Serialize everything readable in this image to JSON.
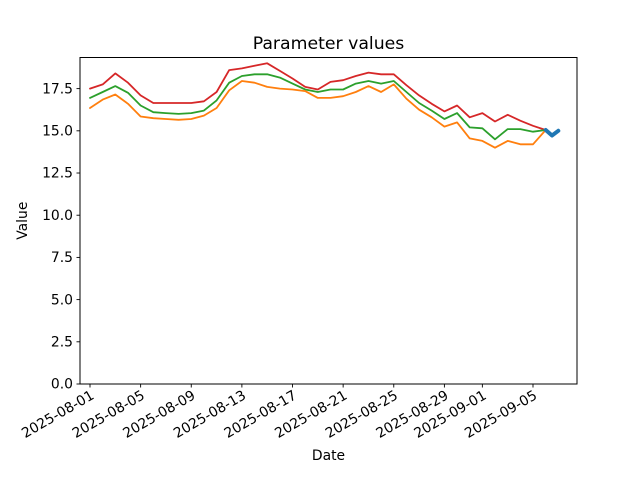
{
  "figure": {
    "title": "Parameter values",
    "xlabel": "Date",
    "ylabel": "Value",
    "background_color": "#ffffff",
    "spine_color": "#000000"
  },
  "chart_data": {
    "type": "line",
    "title": "Parameter values",
    "xlabel": "Date",
    "ylabel": "Value",
    "grid": false,
    "legend": null,
    "ylim": [
      0,
      19.34
    ],
    "xlim_days": [
      -0.79,
      38.48
    ],
    "x_dates": [
      "2025-08-01",
      "2025-08-02",
      "2025-08-03",
      "2025-08-04",
      "2025-08-05",
      "2025-08-06",
      "2025-08-07",
      "2025-08-08",
      "2025-08-09",
      "2025-08-10",
      "2025-08-11",
      "2025-08-12",
      "2025-08-13",
      "2025-08-14",
      "2025-08-15",
      "2025-08-16",
      "2025-08-17",
      "2025-08-18",
      "2025-08-19",
      "2025-08-20",
      "2025-08-21",
      "2025-08-22",
      "2025-08-23",
      "2025-08-24",
      "2025-08-25",
      "2025-08-26",
      "2025-08-27",
      "2025-08-28",
      "2025-08-29",
      "2025-08-30",
      "2025-08-31",
      "2025-09-01",
      "2025-09-02",
      "2025-09-03",
      "2025-09-04",
      "2025-09-05",
      "2025-09-06"
    ],
    "series": [
      {
        "name": "series-red",
        "color": "#d62728",
        "values": [
          17.5,
          17.75,
          18.4,
          17.85,
          17.1,
          16.65,
          16.65,
          16.65,
          16.65,
          16.75,
          17.3,
          18.6,
          18.7,
          18.85,
          19.0,
          18.55,
          18.1,
          17.6,
          17.45,
          17.9,
          18.0,
          18.25,
          18.45,
          18.35,
          18.35,
          17.7,
          17.1,
          16.6,
          16.15,
          16.5,
          15.8,
          16.05,
          15.55,
          15.95,
          15.6,
          15.3,
          15.05
        ]
      },
      {
        "name": "series-green",
        "color": "#2ca02c",
        "values": [
          16.95,
          17.3,
          17.65,
          17.25,
          16.5,
          16.1,
          16.05,
          16.0,
          16.05,
          16.2,
          16.8,
          17.85,
          18.25,
          18.35,
          18.35,
          18.15,
          17.8,
          17.45,
          17.3,
          17.45,
          17.45,
          17.8,
          17.95,
          17.8,
          17.95,
          17.3,
          16.65,
          16.2,
          15.7,
          16.05,
          15.2,
          15.15,
          14.5,
          15.1,
          15.1,
          14.95,
          15.05
        ]
      },
      {
        "name": "series-orange",
        "color": "#ff7f0e",
        "values": [
          16.35,
          16.85,
          17.15,
          16.6,
          15.85,
          15.75,
          15.7,
          15.65,
          15.7,
          15.9,
          16.35,
          17.4,
          17.95,
          17.85,
          17.6,
          17.5,
          17.45,
          17.35,
          16.95,
          16.95,
          17.05,
          17.3,
          17.65,
          17.3,
          17.75,
          16.9,
          16.25,
          15.8,
          15.25,
          15.5,
          14.55,
          14.4,
          14.0,
          14.4,
          14.2,
          14.2,
          15.05
        ]
      }
    ],
    "overlay": {
      "name": "latest-point-marker",
      "color": "#1f77b4",
      "x_day_offsets": [
        36,
        36.5,
        37
      ],
      "values": [
        15.05,
        14.72,
        15.0
      ]
    },
    "x_ticks": [
      {
        "label": "2025-08-01",
        "day": 0
      },
      {
        "label": "2025-08-05",
        "day": 4
      },
      {
        "label": "2025-08-09",
        "day": 8
      },
      {
        "label": "2025-08-13",
        "day": 12
      },
      {
        "label": "2025-08-17",
        "day": 16
      },
      {
        "label": "2025-08-21",
        "day": 20
      },
      {
        "label": "2025-08-25",
        "day": 24
      },
      {
        "label": "2025-08-29",
        "day": 28
      },
      {
        "label": "2025-09-01",
        "day": 31
      },
      {
        "label": "2025-09-05",
        "day": 35
      }
    ],
    "y_ticks": [
      {
        "label": "0.0",
        "value": 0.0
      },
      {
        "label": "2.5",
        "value": 2.5
      },
      {
        "label": "5.0",
        "value": 5.0
      },
      {
        "label": "7.5",
        "value": 7.5
      },
      {
        "label": "10.0",
        "value": 10.0
      },
      {
        "label": "12.5",
        "value": 12.5
      },
      {
        "label": "15.0",
        "value": 15.0
      },
      {
        "label": "17.5",
        "value": 17.5
      }
    ]
  }
}
